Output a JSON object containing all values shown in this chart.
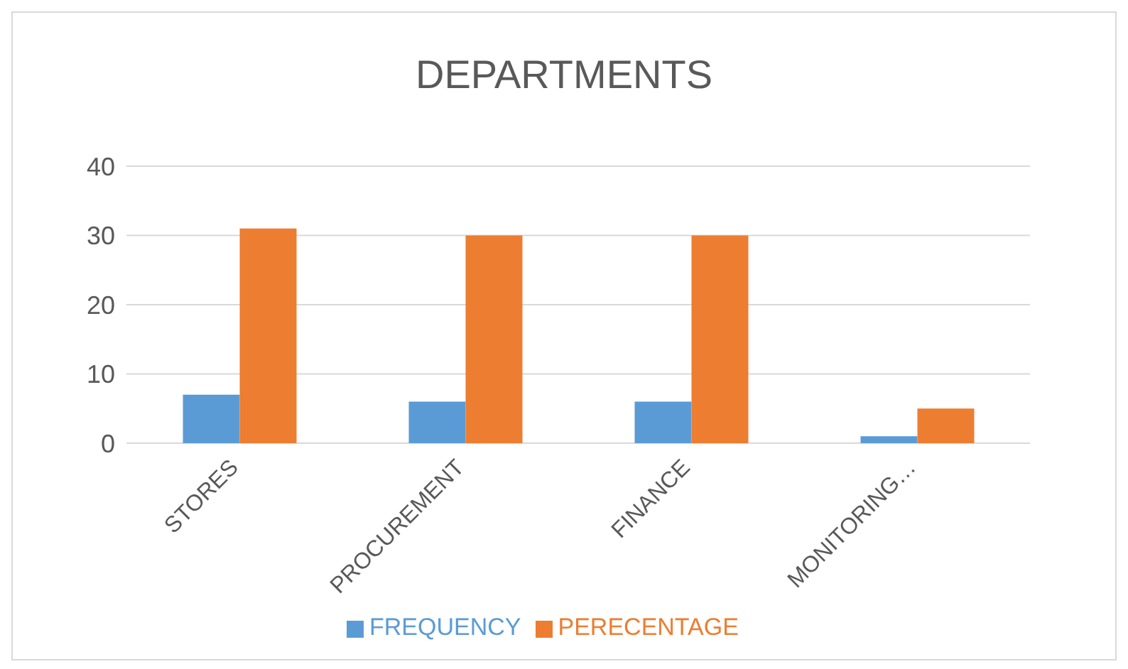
{
  "chart_data": {
    "type": "bar",
    "title": "DEPARTMENTS",
    "categories": [
      "STORES",
      "PROCUREMENT",
      "FINANCE",
      "MONITORING…"
    ],
    "series": [
      {
        "name": "FREQUENCY",
        "color": "#5b9bd5",
        "values": [
          7,
          6,
          6,
          1
        ]
      },
      {
        "name": "PERECENTAGE",
        "color": "#ed7d31",
        "values": [
          31,
          30,
          30,
          5
        ]
      }
    ],
    "ylim": [
      0,
      40
    ],
    "yticks": [
      0,
      10,
      20,
      30,
      40
    ],
    "grid": "y",
    "legend": "bottom"
  }
}
